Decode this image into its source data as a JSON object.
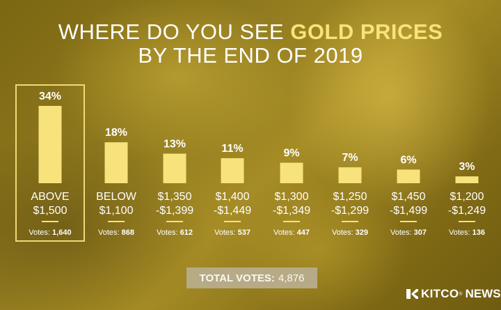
{
  "header": {
    "title_prefix": "WHERE DO YOU SEE ",
    "title_highlight": "GOLD PRICES",
    "subtitle": "BY THE END OF 2019"
  },
  "chart_data": {
    "type": "bar",
    "title": "WHERE DO YOU SEE GOLD PRICES BY THE END OF 2019",
    "xlabel": "",
    "ylabel": "",
    "ylim": [
      0,
      34
    ],
    "grid": false,
    "categories": [
      [
        "ABOVE",
        "$1,500"
      ],
      [
        "BELOW",
        "$1,100"
      ],
      [
        "$1,350",
        "-$1,399"
      ],
      [
        "$1,400",
        "-$1,449"
      ],
      [
        "$1,300",
        "-$1,349"
      ],
      [
        "$1,250",
        "-$1,299"
      ],
      [
        "$1,450",
        "-$1,499"
      ],
      [
        "$1,200",
        "-$1,249"
      ]
    ],
    "values": [
      34,
      18,
      13,
      11,
      9,
      7,
      6,
      3
    ],
    "value_labels": [
      "34%",
      "18%",
      "13%",
      "11%",
      "9%",
      "7%",
      "6%",
      "3%"
    ],
    "votes_label": "Votes:",
    "votes": [
      "1,640",
      "868",
      "612",
      "537",
      "447",
      "329",
      "307",
      "136"
    ],
    "highlighted_index": 0,
    "bar_color": "#f7e27c"
  },
  "footer": {
    "total_label": "TOTAL VOTES:",
    "total_value": "4,876",
    "brand_left": "KITCO",
    "brand_tm": "®",
    "brand_right": "NEWS"
  }
}
